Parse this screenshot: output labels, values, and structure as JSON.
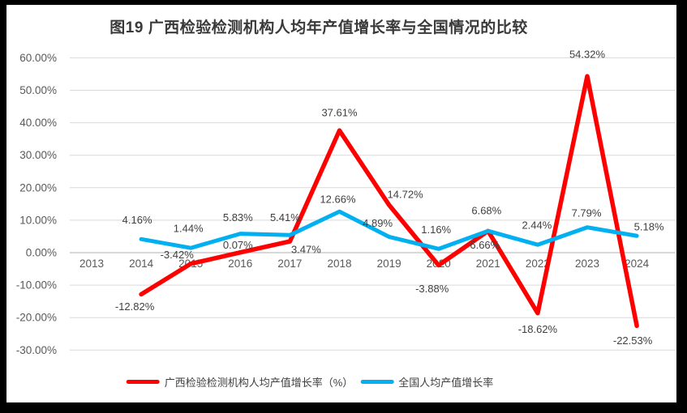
{
  "chart_data": {
    "type": "line",
    "title": "图19 广西检验检测机构人均年产值增长率与全国情况的比较",
    "categories": [
      "2013",
      "2014",
      "2015",
      "2016",
      "2017",
      "2018",
      "2019",
      "2020",
      "2021",
      "2022",
      "2023",
      "2024"
    ],
    "series": [
      {
        "name": "广西检验检测机构人均产值增长率（%）",
        "color": "#FF0000",
        "line_width": 5.5,
        "values": [
          null,
          -12.82,
          -3.42,
          0.07,
          3.47,
          37.61,
          14.72,
          -3.88,
          6.66,
          -18.62,
          54.32,
          -22.53
        ],
        "label_offsets": [
          null,
          [
            -8,
            15
          ],
          [
            -17,
            -11
          ],
          [
            -3,
            -9
          ],
          [
            20,
            10
          ],
          [
            0,
            -22
          ],
          [
            20,
            -13
          ],
          [
            -8,
            29
          ],
          [
            -4,
            17
          ],
          [
            0,
            20
          ],
          [
            0,
            -27
          ],
          [
            -5,
            18
          ]
        ]
      },
      {
        "name": "全国人均产值增长率",
        "color": "#00B0F0",
        "line_width": 5,
        "values": [
          null,
          4.16,
          1.44,
          5.83,
          5.41,
          12.66,
          4.89,
          1.16,
          6.68,
          2.44,
          7.79,
          5.18
        ],
        "label_offsets": [
          null,
          [
            -5,
            -24
          ],
          [
            -3,
            -24
          ],
          [
            -3,
            -20
          ],
          [
            -6,
            -22
          ],
          [
            -2,
            -15
          ],
          [
            -14,
            -17
          ],
          [
            -3,
            -24
          ],
          [
            -2,
            -25
          ],
          [
            -1,
            -24
          ],
          [
            -1,
            -18
          ],
          [
            15,
            -11
          ]
        ]
      }
    ],
    "y_axis": {
      "min": -30,
      "max": 60,
      "step": 10,
      "tick_labels": [
        "60.00%",
        "50.00%",
        "40.00%",
        "30.00%",
        "20.00%",
        "10.00%",
        "0.00%",
        "-10.00%",
        "-20.00%",
        "-30.00%"
      ]
    },
    "label_format": "0.00%",
    "grid": true,
    "legend_position": "bottom",
    "colors": {
      "gridline": "#D9D9D9",
      "zero_axis_line": "#BFBFBF",
      "tick_text": "#595959",
      "data_label_text": "#404040",
      "title_text": "#3A3A3A",
      "background": "#FFFFFF",
      "frame": "#000000"
    }
  }
}
